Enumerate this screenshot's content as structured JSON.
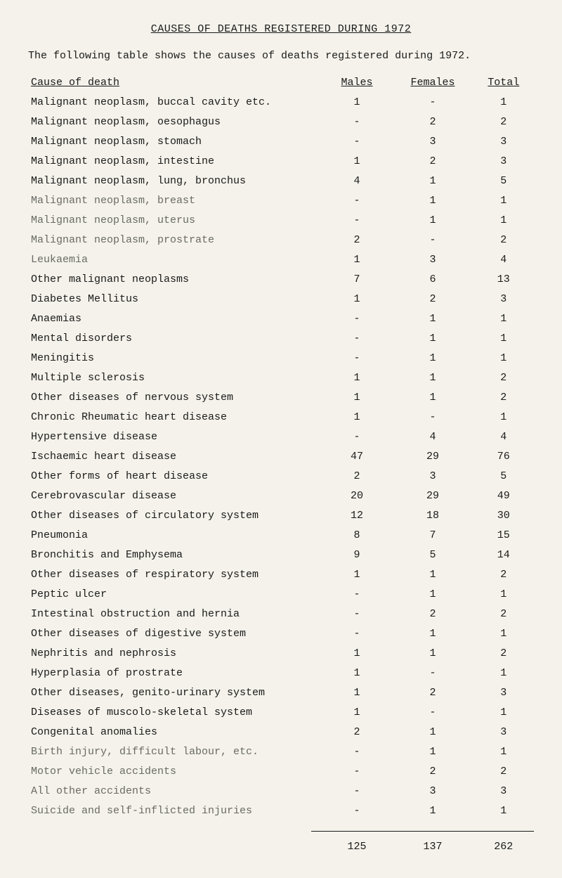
{
  "title": "CAUSES OF DEATHS REGISTERED DURING 1972",
  "intro": "The following table shows the causes of deaths registered during 1972.",
  "headers": {
    "cause": "Cause of death",
    "males": "Males",
    "females": "Females",
    "total": "Total"
  },
  "rows": [
    {
      "cause": "Malignant neoplasm, buccal cavity etc.",
      "m": "1",
      "f": "-",
      "t": "1"
    },
    {
      "cause": "Malignant neoplasm, oesophagus",
      "m": "-",
      "f": "2",
      "t": "2"
    },
    {
      "cause": "Malignant neoplasm, stomach",
      "m": "-",
      "f": "3",
      "t": "3"
    },
    {
      "cause": "Malignant neoplasm, intestine",
      "m": "1",
      "f": "2",
      "t": "3"
    },
    {
      "cause": "Malignant neoplasm, lung, bronchus",
      "m": "4",
      "f": "1",
      "t": "5"
    },
    {
      "cause": "Malignant neoplasm, breast",
      "m": "-",
      "f": "1",
      "t": "1",
      "faded": true
    },
    {
      "cause": "Malignant neoplasm, uterus",
      "m": "-",
      "f": "1",
      "t": "1",
      "faded": true
    },
    {
      "cause": "Malignant neoplasm, prostrate",
      "m": "2",
      "f": "-",
      "t": "2",
      "faded": true
    },
    {
      "cause": "Leukaemia",
      "m": "1",
      "f": "3",
      "t": "4",
      "faded": true
    },
    {
      "cause": "Other malignant neoplasms",
      "m": "7",
      "f": "6",
      "t": "13"
    },
    {
      "cause": "Diabetes Mellitus",
      "m": "1",
      "f": "2",
      "t": "3"
    },
    {
      "cause": "Anaemias",
      "m": "-",
      "f": "1",
      "t": "1"
    },
    {
      "cause": "Mental disorders",
      "m": "-",
      "f": "1",
      "t": "1"
    },
    {
      "cause": "Meningitis",
      "m": "-",
      "f": "1",
      "t": "1"
    },
    {
      "cause": "Multiple sclerosis",
      "m": "1",
      "f": "1",
      "t": "2"
    },
    {
      "cause": "Other diseases of nervous system",
      "m": "1",
      "f": "1",
      "t": "2"
    },
    {
      "cause": "Chronic Rheumatic heart disease",
      "m": "1",
      "f": "-",
      "t": "1"
    },
    {
      "cause": "Hypertensive disease",
      "m": "-",
      "f": "4",
      "t": "4"
    },
    {
      "cause": "Ischaemic heart disease",
      "m": "47",
      "f": "29",
      "t": "76"
    },
    {
      "cause": "Other forms of heart disease",
      "m": "2",
      "f": "3",
      "t": "5"
    },
    {
      "cause": "Cerebrovascular disease",
      "m": "20",
      "f": "29",
      "t": "49"
    },
    {
      "cause": "Other diseases of circulatory system",
      "m": "12",
      "f": "18",
      "t": "30"
    },
    {
      "cause": "Pneumonia",
      "m": "8",
      "f": "7",
      "t": "15"
    },
    {
      "cause": "Bronchitis and Emphysema",
      "m": "9",
      "f": "5",
      "t": "14"
    },
    {
      "cause": "Other diseases of respiratory system",
      "m": "1",
      "f": "1",
      "t": "2"
    },
    {
      "cause": "Peptic ulcer",
      "m": "-",
      "f": "1",
      "t": "1"
    },
    {
      "cause": "Intestinal obstruction and hernia",
      "m": "-",
      "f": "2",
      "t": "2"
    },
    {
      "cause": "Other diseases of digestive system",
      "m": "-",
      "f": "1",
      "t": "1"
    },
    {
      "cause": "Nephritis and nephrosis",
      "m": "1",
      "f": "1",
      "t": "2"
    },
    {
      "cause": "Hyperplasia of prostrate",
      "m": "1",
      "f": "-",
      "t": "1"
    },
    {
      "cause": "Other diseases, genito-urinary system",
      "m": "1",
      "f": "2",
      "t": "3"
    },
    {
      "cause": "Diseases of muscolo-skeletal system",
      "m": "1",
      "f": "-",
      "t": "1"
    },
    {
      "cause": "Congenital anomalies",
      "m": "2",
      "f": "1",
      "t": "3"
    },
    {
      "cause": "Birth injury, difficult labour, etc.",
      "m": "-",
      "f": "1",
      "t": "1",
      "faded": true
    },
    {
      "cause": "Motor vehicle accidents",
      "m": "-",
      "f": "2",
      "t": "2",
      "faded": true
    },
    {
      "cause": "All other accidents",
      "m": "-",
      "f": "3",
      "t": "3",
      "faded": true
    },
    {
      "cause": "Suicide and self-inflicted injuries",
      "m": "-",
      "f": "1",
      "t": "1",
      "faded": true
    }
  ],
  "footer": {
    "m": "125",
    "f": "137",
    "t": "262"
  }
}
